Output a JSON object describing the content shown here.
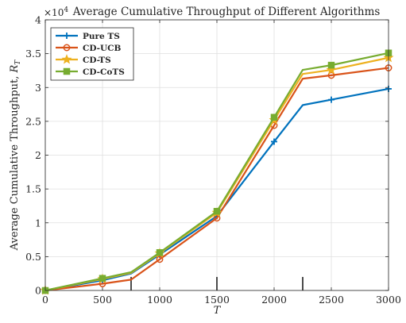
{
  "chart_data": {
    "type": "line",
    "title": "Average Cumulative Throughput of Different Algorithms",
    "xlabel": "T",
    "ylabel": "Average Cumulative Throughput, R_T",
    "ylabel_parts": {
      "text": "Average Cumulative Throughput, ",
      "symbol": "R",
      "subscript": "T"
    },
    "y_exponent": {
      "base": "×10",
      "power": "4"
    },
    "xlim": [
      0,
      3000
    ],
    "ylim": [
      0,
      4
    ],
    "x_ticks": [
      0,
      500,
      1000,
      1500,
      2000,
      2500,
      3000
    ],
    "x_tick_labels": [
      "0",
      "500",
      "1000",
      "1500",
      "2000",
      "2500",
      "3000"
    ],
    "y_ticks": [
      0,
      0.5,
      1,
      1.5,
      2,
      2.5,
      3,
      3.5,
      4
    ],
    "y_tick_labels": [
      "0",
      "0.5",
      "1",
      "1.5",
      "2",
      "2.5",
      "3",
      "3.5",
      "4"
    ],
    "grid": true,
    "legend_position": "top-left",
    "x": [
      0,
      500,
      750,
      1000,
      1500,
      2000,
      2250,
      2500,
      3000
    ],
    "marker_x": [
      0,
      500,
      1000,
      1500,
      2000,
      2500,
      3000
    ],
    "series": [
      {
        "name": "Pure TS",
        "color": "#0072BD",
        "marker": "plus",
        "values": [
          0,
          0.15,
          0.25,
          0.53,
          1.1,
          2.2,
          2.74,
          2.82,
          2.98
        ]
      },
      {
        "name": "CD-UCB",
        "color": "#D95319",
        "marker": "circle",
        "values": [
          0,
          0.1,
          0.16,
          0.46,
          1.07,
          2.44,
          3.13,
          3.18,
          3.29
        ]
      },
      {
        "name": "CD-TS",
        "color": "#EDB120",
        "marker": "star",
        "values": [
          0,
          0.17,
          0.26,
          0.55,
          1.15,
          2.52,
          3.2,
          3.26,
          3.44
        ]
      },
      {
        "name": "CD-CoTS",
        "color": "#77AC30",
        "marker": "square",
        "values": [
          0,
          0.18,
          0.27,
          0.56,
          1.17,
          2.56,
          3.26,
          3.33,
          3.51
        ]
      }
    ],
    "vertical_markers": [
      {
        "x": 750,
        "y": 0.2
      },
      {
        "x": 1500,
        "y": 0.2
      },
      {
        "x": 2250,
        "y": 0.2
      }
    ]
  }
}
